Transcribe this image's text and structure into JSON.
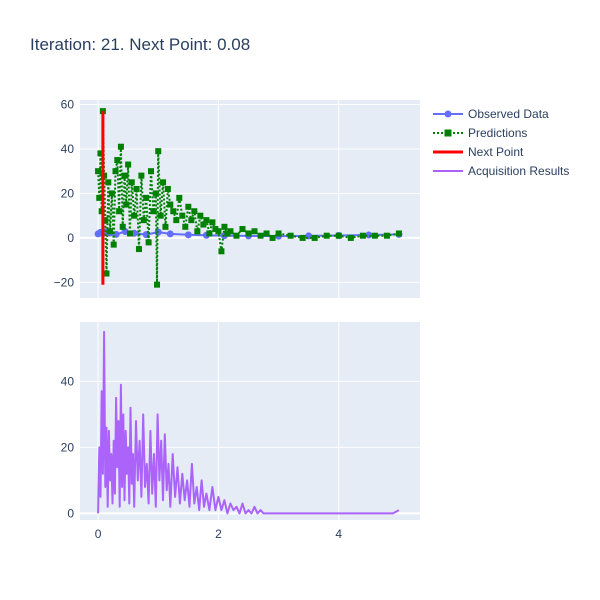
{
  "title": "Iteration: 21. Next Point: 0.08",
  "colors": {
    "plot_bg": "#e5ecf6",
    "grid": "#ffffff",
    "text": "#2a3f5f",
    "observed": "#636efa",
    "predictions": "#008000",
    "next_point": "#ff0000",
    "acquisition": "#ab63fa"
  },
  "chart_data": [
    {
      "type": "line",
      "panel": "top",
      "xlim": [
        -0.3,
        5.35
      ],
      "ylim": [
        -27,
        62
      ],
      "x_ticks": [
        0,
        2,
        4
      ],
      "x_tick_labels": [
        "",
        "",
        ""
      ],
      "y_ticks": [
        -20,
        0,
        20,
        40,
        60
      ],
      "y_tick_labels": [
        "−20",
        "0",
        "20",
        "40",
        "60"
      ],
      "grid": true,
      "legend": "top-right",
      "series": [
        {
          "name": "Observed Data",
          "mode": "lines+markers",
          "x": [
            0.0,
            0.04,
            0.08,
            0.12,
            0.2,
            0.3,
            0.45,
            0.6,
            0.8,
            1.0,
            1.2,
            1.5,
            1.8,
            2.1,
            2.5,
            3.0,
            3.5,
            4.0,
            4.5,
            5.0
          ],
          "y": [
            1.8,
            2.5,
            1.9,
            2.8,
            2.2,
            1.6,
            2.9,
            2.1,
            1.5,
            2.6,
            1.8,
            1.4,
            1.2,
            1.0,
            0.9,
            0.8,
            0.9,
            1.1,
            1.3,
            1.6
          ]
        },
        {
          "name": "Predictions",
          "mode": "lines+markers",
          "style": "dotted",
          "x": [
            0.0,
            0.02,
            0.04,
            0.06,
            0.08,
            0.1,
            0.12,
            0.14,
            0.17,
            0.2,
            0.23,
            0.26,
            0.29,
            0.32,
            0.35,
            0.38,
            0.41,
            0.44,
            0.47,
            0.5,
            0.53,
            0.56,
            0.6,
            0.64,
            0.68,
            0.72,
            0.76,
            0.8,
            0.84,
            0.88,
            0.92,
            0.96,
            0.98,
            1.0,
            1.04,
            1.08,
            1.12,
            1.16,
            1.2,
            1.25,
            1.3,
            1.35,
            1.4,
            1.45,
            1.5,
            1.55,
            1.6,
            1.65,
            1.7,
            1.75,
            1.8,
            1.85,
            1.9,
            1.95,
            2.0,
            2.05,
            2.1,
            2.15,
            2.2,
            2.3,
            2.4,
            2.5,
            2.6,
            2.7,
            2.8,
            2.9,
            3.0,
            3.2,
            3.4,
            3.6,
            3.8,
            4.0,
            4.2,
            4.4,
            4.6,
            4.8,
            5.0
          ],
          "y": [
            30,
            18,
            38,
            12,
            57,
            28,
            8,
            -16,
            25,
            3,
            20,
            -3,
            30,
            35,
            12,
            41,
            5,
            28,
            15,
            33,
            2,
            25,
            10,
            22,
            -5,
            28,
            8,
            18,
            -2,
            30,
            12,
            20,
            -21,
            39,
            10,
            25,
            5,
            22,
            15,
            12,
            8,
            18,
            10,
            5,
            14,
            8,
            12,
            3,
            10,
            6,
            8,
            2,
            7,
            4,
            3,
            -6,
            5,
            2,
            3,
            1,
            4,
            2,
            3,
            1,
            2,
            0,
            2,
            1,
            0,
            0,
            1,
            1,
            0,
            1,
            1,
            1,
            2
          ]
        },
        {
          "name": "Next Point",
          "mode": "lines",
          "x": [
            0.08,
            0.08
          ],
          "y": [
            -21,
            57
          ]
        }
      ]
    },
    {
      "type": "line",
      "panel": "bottom",
      "xlim": [
        -0.3,
        5.35
      ],
      "ylim": [
        -2,
        58
      ],
      "x_ticks": [
        0,
        2,
        4
      ],
      "x_tick_labels": [
        "0",
        "2",
        "4"
      ],
      "y_ticks": [
        0,
        20,
        40
      ],
      "y_tick_labels": [
        "0",
        "20",
        "40"
      ],
      "grid": true,
      "series": [
        {
          "name": "Acquisition Results",
          "mode": "lines",
          "x": [
            0.0,
            0.02,
            0.04,
            0.06,
            0.08,
            0.1,
            0.12,
            0.14,
            0.16,
            0.18,
            0.2,
            0.22,
            0.24,
            0.26,
            0.28,
            0.3,
            0.32,
            0.34,
            0.36,
            0.38,
            0.4,
            0.42,
            0.44,
            0.46,
            0.48,
            0.5,
            0.52,
            0.54,
            0.56,
            0.58,
            0.6,
            0.63,
            0.66,
            0.69,
            0.72,
            0.75,
            0.78,
            0.81,
            0.84,
            0.87,
            0.9,
            0.93,
            0.96,
            0.99,
            1.02,
            1.05,
            1.08,
            1.11,
            1.14,
            1.17,
            1.2,
            1.24,
            1.28,
            1.32,
            1.36,
            1.4,
            1.44,
            1.48,
            1.52,
            1.56,
            1.6,
            1.64,
            1.68,
            1.72,
            1.76,
            1.8,
            1.85,
            1.9,
            1.95,
            2.0,
            2.05,
            2.1,
            2.15,
            2.2,
            2.25,
            2.3,
            2.35,
            2.4,
            2.45,
            2.5,
            2.55,
            2.6,
            2.65,
            2.7,
            2.75,
            2.8,
            2.9,
            3.0,
            3.2,
            3.5,
            4.0,
            4.5,
            4.9,
            5.0
          ],
          "y": [
            0,
            20,
            5,
            37,
            12,
            55,
            8,
            26,
            2,
            25,
            10,
            18,
            3,
            22,
            6,
            35,
            14,
            28,
            2,
            39,
            8,
            30,
            4,
            25,
            12,
            20,
            3,
            32,
            9,
            18,
            2,
            28,
            10,
            22,
            5,
            30,
            8,
            15,
            3,
            25,
            6,
            18,
            2,
            30,
            10,
            22,
            4,
            24,
            7,
            15,
            2,
            18,
            5,
            14,
            3,
            12,
            4,
            10,
            2,
            15,
            3,
            8,
            1,
            10,
            2,
            6,
            1,
            8,
            1,
            5,
            1,
            4,
            0,
            3,
            1,
            2,
            0,
            3,
            0,
            1,
            0,
            2,
            0,
            1,
            0,
            0,
            0,
            0,
            0,
            0,
            0,
            0,
            0,
            1
          ]
        }
      ]
    }
  ]
}
